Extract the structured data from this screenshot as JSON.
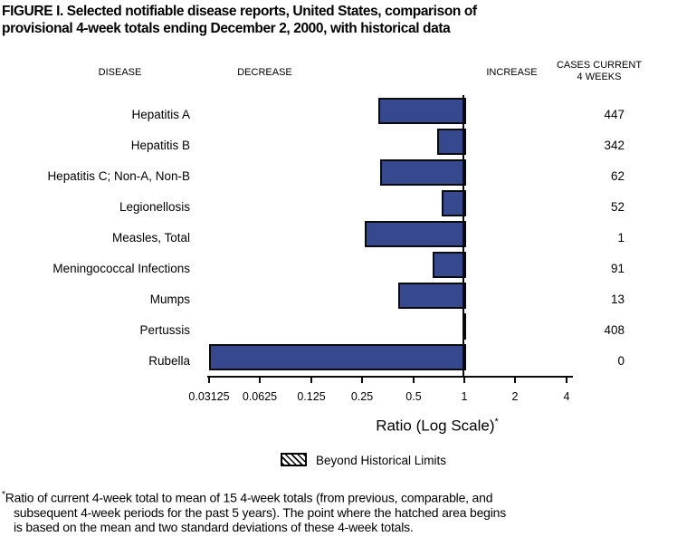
{
  "title": {
    "line1": "FIGURE I. Selected notifiable disease reports, United States, comparison of",
    "line2": "provisional 4-week totals ending December 2, 2000, with historical data"
  },
  "headers": {
    "disease": "DISEASE",
    "decrease": "DECREASE",
    "increase": "INCREASE",
    "cases_line1": "CASES CURRENT",
    "cases_line2": "4 WEEKS"
  },
  "chart_data": {
    "type": "bar",
    "orientation": "horizontal",
    "scale": "log2",
    "baseline": 1,
    "xlim": [
      0.03125,
      4
    ],
    "grid": false,
    "bar_color": "#36498e",
    "bar_border_color": "#0b0b0f",
    "axis": {
      "label": "Ratio (Log Scale)",
      "label_superscript": "*",
      "ticks": [
        0.03125,
        0.0625,
        0.125,
        0.25,
        0.5,
        1,
        2,
        4
      ],
      "tick_labels": [
        "0.03125",
        "0.0625",
        "0.125",
        "0.25",
        "0.5",
        "1",
        "2",
        "4"
      ]
    },
    "rows": [
      {
        "disease": "Hepatitis A",
        "ratio": 0.31,
        "cases": "447"
      },
      {
        "disease": "Hepatitis B",
        "ratio": 0.69,
        "cases": "342"
      },
      {
        "disease": "Hepatitis C; Non-A, Non-B",
        "ratio": 0.32,
        "cases": "62"
      },
      {
        "disease": "Legionellosis",
        "ratio": 0.74,
        "cases": "52"
      },
      {
        "disease": "Measles, Total",
        "ratio": 0.26,
        "cases": "1"
      },
      {
        "disease": "Meningococcal Infections",
        "ratio": 0.65,
        "cases": "91"
      },
      {
        "disease": "Mumps",
        "ratio": 0.41,
        "cases": "13"
      },
      {
        "disease": "Pertussis",
        "ratio": 0.98,
        "cases": "408"
      },
      {
        "disease": "Rubella",
        "ratio": 0.03125,
        "cases": "0"
      }
    ]
  },
  "legend": {
    "swatch": "diagonal-hatch",
    "label": "Beyond Historical Limits"
  },
  "footnote": {
    "marker": "*",
    "lines": [
      "Ratio of current 4-week total to mean of 15 4-week totals (from previous, comparable, and",
      "subsequent 4-week periods for the past 5 years). The point where the hatched area begins",
      "is based on the mean and two standard deviations of these 4-week totals."
    ]
  }
}
